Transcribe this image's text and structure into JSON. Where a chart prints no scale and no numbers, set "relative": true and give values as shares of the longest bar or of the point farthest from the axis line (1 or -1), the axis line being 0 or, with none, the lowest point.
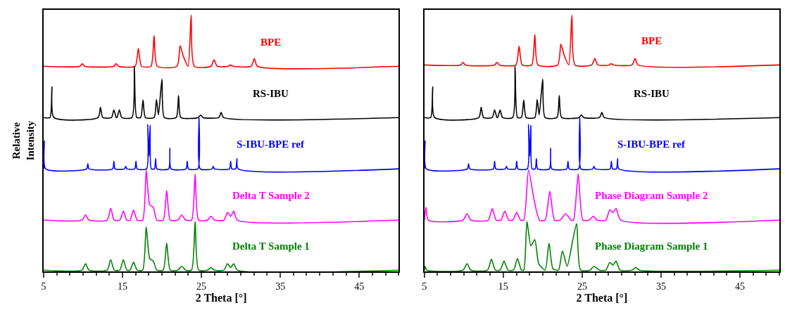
{
  "chart_data": [
    {
      "type": "line",
      "relative": true,
      "xlabel": "2 Theta [°]",
      "ylabel": "Relative Intensity",
      "xlim": [
        5,
        50
      ],
      "xticks": [
        5,
        15,
        25,
        35,
        45
      ],
      "series": [
        {
          "name": "BPE",
          "color": "#ff0000",
          "x": [
            5,
            9.6,
            9.9,
            10.2,
            13.9,
            14.2,
            14.5,
            16.6,
            17.0,
            17.4,
            18.6,
            19.0,
            19.4,
            21.9,
            22.3,
            22.7,
            23.3,
            23.7,
            24.1,
            26.2,
            26.6,
            27.0,
            28.4,
            28.7,
            29.0,
            31.3,
            31.7,
            32.1,
            50
          ],
          "values": [
            0.8,
            0.8,
            0.81,
            0.8,
            0.8,
            0.81,
            0.8,
            0.8,
            0.87,
            0.8,
            0.8,
            0.92,
            0.8,
            0.8,
            0.88,
            0.84,
            0.8,
            1,
            0.8,
            0.8,
            0.825,
            0.8,
            0.8,
            0.805,
            0.8,
            0.8,
            0.83,
            0.8,
            0.8
          ]
        },
        {
          "name": "RS-IBU",
          "color": "#000000",
          "x": [
            5,
            5.8,
            6.05,
            6.3,
            11.9,
            12.2,
            12.5,
            13.6,
            13.9,
            14.2,
            14.3,
            14.6,
            14.9,
            16.2,
            16.5,
            16.8,
            17.3,
            17.6,
            17.9,
            19.0,
            19.3,
            19.55,
            20.0,
            20.3,
            21.8,
            22.1,
            22.4,
            24.6,
            24.9,
            25.2,
            27.2,
            27.5,
            27.8,
            50
          ],
          "values": [
            0.6,
            0.6,
            0.72,
            0.6,
            0.6,
            0.64,
            0.6,
            0.6,
            0.63,
            0.6,
            0.6,
            0.63,
            0.6,
            0.6,
            0.8,
            0.6,
            0.6,
            0.668,
            0.6,
            0.6,
            0.67,
            0.61,
            0.75,
            0.6,
            0.6,
            0.686,
            0.6,
            0.6,
            0.61,
            0.6,
            0.6,
            0.62,
            0.6,
            0.6
          ]
        },
        {
          "name": "S-IBU-BPE ref",
          "color": "#0000ff",
          "x": [
            5,
            5.1,
            5.25,
            10.45,
            10.6,
            10.75,
            13.75,
            13.9,
            14.05,
            15.25,
            15.4,
            15.55,
            16.55,
            16.7,
            16.85,
            18.05,
            18.2,
            18.35,
            18.5,
            18.65,
            19.05,
            19.2,
            19.35,
            20.85,
            21.0,
            21.15,
            23.05,
            23.2,
            23.35,
            24.55,
            24.7,
            24.85,
            26.35,
            26.5,
            26.65,
            28.55,
            28.7,
            28.85,
            29.35,
            29.5,
            29.65,
            50
          ],
          "values": [
            0.4,
            0.51,
            0.4,
            0.4,
            0.42,
            0.4,
            0.4,
            0.43,
            0.4,
            0.4,
            0.41,
            0.4,
            0.4,
            0.43,
            0.4,
            0.4,
            0.573,
            0.45,
            0.57,
            0.4,
            0.4,
            0.44,
            0.4,
            0.4,
            0.48,
            0.4,
            0.4,
            0.43,
            0.4,
            0.4,
            0.597,
            0.4,
            0.4,
            0.41,
            0.4,
            0.4,
            0.43,
            0.4,
            0.4,
            0.44,
            0.4,
            0.4
          ]
        },
        {
          "name": "Delta T Sample 2",
          "color": "#ff00ff",
          "x": [
            5,
            9.85,
            10.3,
            10.75,
            13.05,
            13.5,
            13.95,
            14.65,
            15.1,
            15.55,
            15.95,
            16.4,
            16.85,
            17.55,
            18.0,
            18.45,
            18.9,
            19.35,
            20.15,
            20.6,
            21.05,
            22.0,
            22.5,
            23.0,
            23.75,
            24.2,
            24.65,
            25.75,
            26.2,
            26.65,
            27.85,
            28.3,
            28.7,
            29.1,
            29.55,
            50
          ],
          "values": [
            0.2,
            0.2,
            0.22,
            0.2,
            0.2,
            0.246,
            0.2,
            0.2,
            0.235,
            0.2,
            0.2,
            0.24,
            0.2,
            0.2,
            0.395,
            0.26,
            0.25,
            0.2,
            0.2,
            0.316,
            0.2,
            0.2,
            0.22,
            0.2,
            0.2,
            0.38,
            0.2,
            0.2,
            0.215,
            0.2,
            0.2,
            0.23,
            0.215,
            0.235,
            0.2,
            0.2
          ]
        },
        {
          "name": "Delta T Sample 1",
          "color": "#008000",
          "x": [
            5,
            9.85,
            10.3,
            10.75,
            13.05,
            13.5,
            13.95,
            14.65,
            15.1,
            15.55,
            15.95,
            16.4,
            16.85,
            17.55,
            18.0,
            18.45,
            18.9,
            19.35,
            20.15,
            20.6,
            21.05,
            22.0,
            22.5,
            23.0,
            23.75,
            24.2,
            24.65,
            25.75,
            26.2,
            26.65,
            27.85,
            28.3,
            28.7,
            29.1,
            29.55,
            50
          ],
          "values": [
            0.005,
            0.005,
            0.03,
            0.005,
            0.005,
            0.046,
            0.005,
            0.005,
            0.046,
            0.005,
            0.005,
            0.036,
            0.005,
            0.005,
            0.173,
            0.05,
            0.04,
            0.005,
            0.005,
            0.11,
            0.005,
            0.005,
            0.02,
            0.005,
            0.005,
            0.195,
            0.005,
            0.005,
            0.015,
            0.005,
            0.005,
            0.03,
            0.015,
            0.03,
            0.005,
            0.005
          ]
        }
      ]
    },
    {
      "type": "line",
      "relative": true,
      "xlabel": "2 Theta [°]",
      "xlim": [
        5,
        50
      ],
      "xticks": [
        5,
        15,
        25,
        35,
        45
      ],
      "series": [
        {
          "name": "BPE",
          "color": "#ff0000",
          "x": [
            5,
            9.6,
            9.9,
            10.2,
            13.9,
            14.2,
            14.5,
            16.6,
            17.0,
            17.4,
            18.6,
            19.0,
            19.4,
            21.9,
            22.3,
            22.7,
            23.3,
            23.7,
            24.1,
            26.2,
            26.6,
            27.0,
            28.4,
            28.7,
            29.0,
            31.3,
            31.7,
            32.1,
            50
          ],
          "values": [
            0.805,
            0.805,
            0.815,
            0.805,
            0.805,
            0.815,
            0.805,
            0.805,
            0.878,
            0.805,
            0.805,
            0.924,
            0.805,
            0.805,
            0.886,
            0.845,
            0.805,
            1,
            0.805,
            0.805,
            0.83,
            0.805,
            0.805,
            0.81,
            0.805,
            0.805,
            0.83,
            0.805,
            0.805
          ]
        },
        {
          "name": "RS-IBU",
          "color": "#000000",
          "x": [
            5,
            5.8,
            6.05,
            6.3,
            11.9,
            12.2,
            12.5,
            13.6,
            13.9,
            14.2,
            14.3,
            14.6,
            14.9,
            16.2,
            16.5,
            16.8,
            17.3,
            17.6,
            17.9,
            19.0,
            19.3,
            19.55,
            20.0,
            20.3,
            21.8,
            22.1,
            22.4,
            24.6,
            24.9,
            25.2,
            27.2,
            27.5,
            27.8,
            50
          ],
          "values": [
            0.6,
            0.6,
            0.72,
            0.6,
            0.6,
            0.64,
            0.6,
            0.6,
            0.63,
            0.6,
            0.6,
            0.63,
            0.6,
            0.6,
            0.8,
            0.6,
            0.6,
            0.668,
            0.6,
            0.6,
            0.67,
            0.61,
            0.75,
            0.6,
            0.6,
            0.686,
            0.6,
            0.6,
            0.61,
            0.6,
            0.6,
            0.62,
            0.6,
            0.6
          ]
        },
        {
          "name": "S-IBU-BPE ref",
          "color": "#0000ff",
          "x": [
            5,
            5.1,
            5.25,
            10.45,
            10.6,
            10.75,
            13.75,
            13.9,
            14.05,
            15.25,
            15.4,
            15.55,
            16.55,
            16.7,
            16.85,
            18.05,
            18.2,
            18.35,
            18.5,
            18.65,
            19.05,
            19.2,
            19.35,
            20.85,
            21.0,
            21.15,
            23.05,
            23.2,
            23.35,
            24.55,
            24.7,
            24.85,
            26.35,
            26.5,
            26.65,
            28.55,
            28.7,
            28.85,
            29.35,
            29.5,
            29.65,
            50
          ],
          "values": [
            0.4,
            0.51,
            0.4,
            0.4,
            0.42,
            0.4,
            0.4,
            0.43,
            0.4,
            0.4,
            0.41,
            0.4,
            0.4,
            0.43,
            0.4,
            0.4,
            0.573,
            0.45,
            0.57,
            0.4,
            0.4,
            0.44,
            0.4,
            0.4,
            0.48,
            0.4,
            0.4,
            0.43,
            0.4,
            0.4,
            0.597,
            0.4,
            0.4,
            0.41,
            0.4,
            0.4,
            0.43,
            0.4,
            0.4,
            0.44,
            0.4,
            0.4
          ]
        },
        {
          "name": "Phase Diagram Sample 2",
          "color": "#ff00ff",
          "x": [
            5,
            5.2,
            5.5,
            9.9,
            10.4,
            10.9,
            13.1,
            13.6,
            14.1,
            14.7,
            15.2,
            15.7,
            16.2,
            16.7,
            17.2,
            17.6,
            18.2,
            18.9,
            19.6,
            20.3,
            20.9,
            21.5,
            22.2,
            22.9,
            23.6,
            23.9,
            24.5,
            25.1,
            25.9,
            26.4,
            26.9,
            28.0,
            28.5,
            28.9,
            29.3,
            29.9,
            50
          ],
          "values": [
            0.2,
            0.25,
            0.2,
            0.2,
            0.225,
            0.2,
            0.2,
            0.245,
            0.2,
            0.2,
            0.235,
            0.2,
            0.2,
            0.23,
            0.2,
            0.2,
            0.397,
            0.28,
            0.2,
            0.2,
            0.313,
            0.2,
            0.2,
            0.225,
            0.2,
            0.2,
            0.38,
            0.2,
            0.2,
            0.215,
            0.2,
            0.2,
            0.24,
            0.23,
            0.245,
            0.2,
            0.2
          ]
        },
        {
          "name": "Phase Diagram Sample 1",
          "color": "#008000",
          "x": [
            5,
            5.1,
            5.3,
            9.9,
            10.4,
            10.9,
            13.0,
            13.5,
            14.0,
            14.6,
            15.1,
            15.6,
            16.3,
            16.8,
            17.3,
            17.6,
            18.0,
            18.5,
            19.0,
            19.5,
            20.3,
            20.8,
            21.3,
            22.0,
            22.5,
            23.1,
            23.8,
            24.3,
            24.8,
            26.0,
            26.5,
            27.2,
            28.0,
            28.5,
            28.9,
            29.3,
            29.8,
            31.3,
            31.8,
            32.3,
            50
          ],
          "values": [
            0.005,
            0.02,
            0.005,
            0.005,
            0.03,
            0.005,
            0.005,
            0.048,
            0.005,
            0.005,
            0.04,
            0.005,
            0.005,
            0.05,
            0.005,
            0.005,
            0.195,
            0.1,
            0.124,
            0.03,
            0.005,
            0.11,
            0.01,
            0.005,
            0.08,
            0.02,
            0.12,
            0.186,
            0.005,
            0.005,
            0.02,
            0.005,
            0.005,
            0.035,
            0.025,
            0.04,
            0.005,
            0.005,
            0.015,
            0.005,
            0.005
          ]
        }
      ]
    }
  ]
}
